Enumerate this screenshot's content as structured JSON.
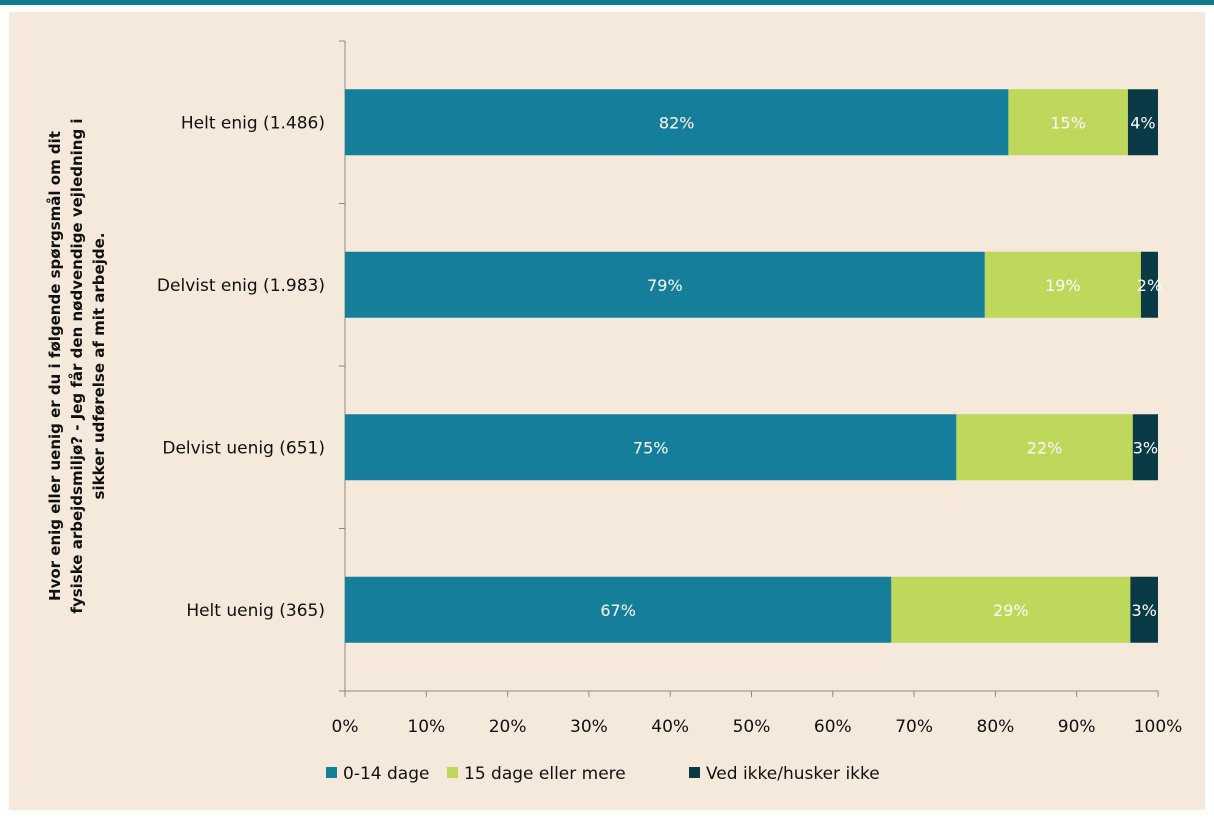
{
  "chart_data": {
    "type": "bar",
    "orientation": "horizontal",
    "stacked": true,
    "ylabel_lines": [
      "Hvor enig eller uenig er du i følgende spørgsmål om dit",
      "fysiske arbejdsmiljø? - Jeg får den nødvendige vejledning i",
      "sikker udførelse af mit arbejde."
    ],
    "categories": [
      "Helt enig (1.486)",
      "Delvist enig (1.983)",
      "Delvist uenig (651)",
      "Helt uenig (365)"
    ],
    "series": [
      {
        "name": "0-14 dage",
        "color": "#147e9b",
        "label_color": "#ffffff",
        "values": [
          81.6,
          78.7,
          75.2,
          67.2
        ],
        "labels": [
          "82%",
          "79%",
          "75%",
          "67%"
        ]
      },
      {
        "name": "15 dage eller mere",
        "color": "#bdd85b",
        "label_color": "#ffffff",
        "values": [
          14.7,
          19.2,
          21.7,
          29.4
        ],
        "labels": [
          "15%",
          "19%",
          "22%",
          "29%"
        ]
      },
      {
        "name": "Ved ikke/husker ikke",
        "color": "#0b3a47",
        "label_color": "#ffffff",
        "values": [
          3.7,
          2.1,
          3.1,
          3.4
        ],
        "labels": [
          "4%",
          "2%",
          "3%",
          "3%"
        ]
      }
    ],
    "x_ticks": [
      "0%",
      "10%",
      "20%",
      "30%",
      "40%",
      "50%",
      "60%",
      "70%",
      "80%",
      "90%",
      "100%"
    ],
    "xlim": [
      0,
      100
    ],
    "grid": false,
    "legend_position": "bottom"
  }
}
